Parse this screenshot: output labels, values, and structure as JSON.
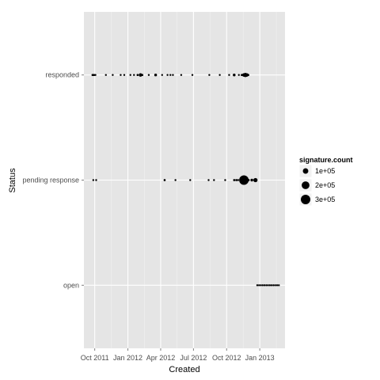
{
  "chart_data": {
    "type": "scatter",
    "title": "",
    "xlabel": "Created",
    "ylabel": "Status",
    "x_tick_labels": [
      "Oct 2011",
      "Jan 2012",
      "Apr 2012",
      "Jul 2012",
      "Oct 2012",
      "Jan 2013"
    ],
    "x_ticks": [
      "2011-10-01",
      "2012-01-01",
      "2012-04-01",
      "2012-07-01",
      "2012-10-01",
      "2013-01-01"
    ],
    "xlim": [
      "2011-09-01",
      "2013-03-12"
    ],
    "categories": [
      "open",
      "pending response",
      "responded"
    ],
    "grid": true,
    "background": "#e5e5e5",
    "point_color": "#000000",
    "legend": {
      "title": "signature.count",
      "placement": "right",
      "entries": [
        {
          "label": "1e+05",
          "value": 100000
        },
        {
          "label": "2e+05",
          "value": 200000
        },
        {
          "label": "3e+05",
          "value": 300000
        }
      ]
    },
    "series": [
      {
        "category": "responded",
        "points": [
          {
            "x": "2011-09-25",
            "size": 15000
          },
          {
            "x": "2011-09-29",
            "size": 15000
          },
          {
            "x": "2011-10-03",
            "size": 12000
          },
          {
            "x": "2011-11-01",
            "size": 10000
          },
          {
            "x": "2011-11-20",
            "size": 6000
          },
          {
            "x": "2011-12-12",
            "size": 8000
          },
          {
            "x": "2011-12-22",
            "size": 6000
          },
          {
            "x": "2012-01-08",
            "size": 7000
          },
          {
            "x": "2012-01-18",
            "size": 9000
          },
          {
            "x": "2012-01-28",
            "size": 15000
          },
          {
            "x": "2012-02-05",
            "size": 40000
          },
          {
            "x": "2012-02-10",
            "size": 15000
          },
          {
            "x": "2012-02-28",
            "size": 6000
          },
          {
            "x": "2012-03-18",
            "size": 25000
          },
          {
            "x": "2012-04-05",
            "size": 6000
          },
          {
            "x": "2012-04-20",
            "size": 6000
          },
          {
            "x": "2012-04-28",
            "size": 8000
          },
          {
            "x": "2012-05-05",
            "size": 10000
          },
          {
            "x": "2012-05-28",
            "size": 6000
          },
          {
            "x": "2012-06-28",
            "size": 6000
          },
          {
            "x": "2012-08-14",
            "size": 6000
          },
          {
            "x": "2012-09-12",
            "size": 6000
          },
          {
            "x": "2012-10-08",
            "size": 6000
          },
          {
            "x": "2012-10-22",
            "size": 25000
          },
          {
            "x": "2012-11-04",
            "size": 10000
          },
          {
            "x": "2012-11-12",
            "size": 15000
          },
          {
            "x": "2012-11-18",
            "size": 40000
          },
          {
            "x": "2012-11-22",
            "size": 60000
          },
          {
            "x": "2012-11-26",
            "size": 40000
          },
          {
            "x": "2012-11-30",
            "size": 15000
          }
        ]
      },
      {
        "category": "pending response",
        "points": [
          {
            "x": "2011-09-27",
            "size": 6000
          },
          {
            "x": "2011-10-05",
            "size": 6000
          },
          {
            "x": "2012-04-12",
            "size": 15000
          },
          {
            "x": "2012-05-12",
            "size": 6000
          },
          {
            "x": "2012-06-22",
            "size": 6000
          },
          {
            "x": "2012-08-12",
            "size": 6000
          },
          {
            "x": "2012-08-27",
            "size": 6000
          },
          {
            "x": "2012-09-27",
            "size": 6000
          },
          {
            "x": "2012-10-22",
            "size": 15000
          },
          {
            "x": "2012-10-28",
            "size": 15000
          },
          {
            "x": "2012-11-02",
            "size": 10000
          },
          {
            "x": "2012-11-18",
            "size": 300000
          },
          {
            "x": "2012-12-01",
            "size": 15000
          },
          {
            "x": "2012-12-10",
            "size": 25000
          },
          {
            "x": "2012-12-20",
            "size": 60000
          }
        ]
      },
      {
        "category": "open",
        "points": [
          {
            "x": "2012-12-25",
            "size": 3000
          },
          {
            "x": "2012-12-30",
            "size": 6000
          },
          {
            "x": "2013-01-04",
            "size": 6000
          },
          {
            "x": "2013-01-09",
            "size": 6000
          },
          {
            "x": "2013-01-14",
            "size": 6000
          },
          {
            "x": "2013-01-19",
            "size": 6000
          },
          {
            "x": "2013-01-24",
            "size": 6000
          },
          {
            "x": "2013-01-29",
            "size": 6000
          },
          {
            "x": "2013-02-03",
            "size": 6000
          },
          {
            "x": "2013-02-08",
            "size": 6000
          },
          {
            "x": "2013-02-13",
            "size": 6000
          },
          {
            "x": "2013-02-18",
            "size": 6000
          },
          {
            "x": "2013-02-23",
            "size": 6000
          }
        ]
      }
    ]
  }
}
